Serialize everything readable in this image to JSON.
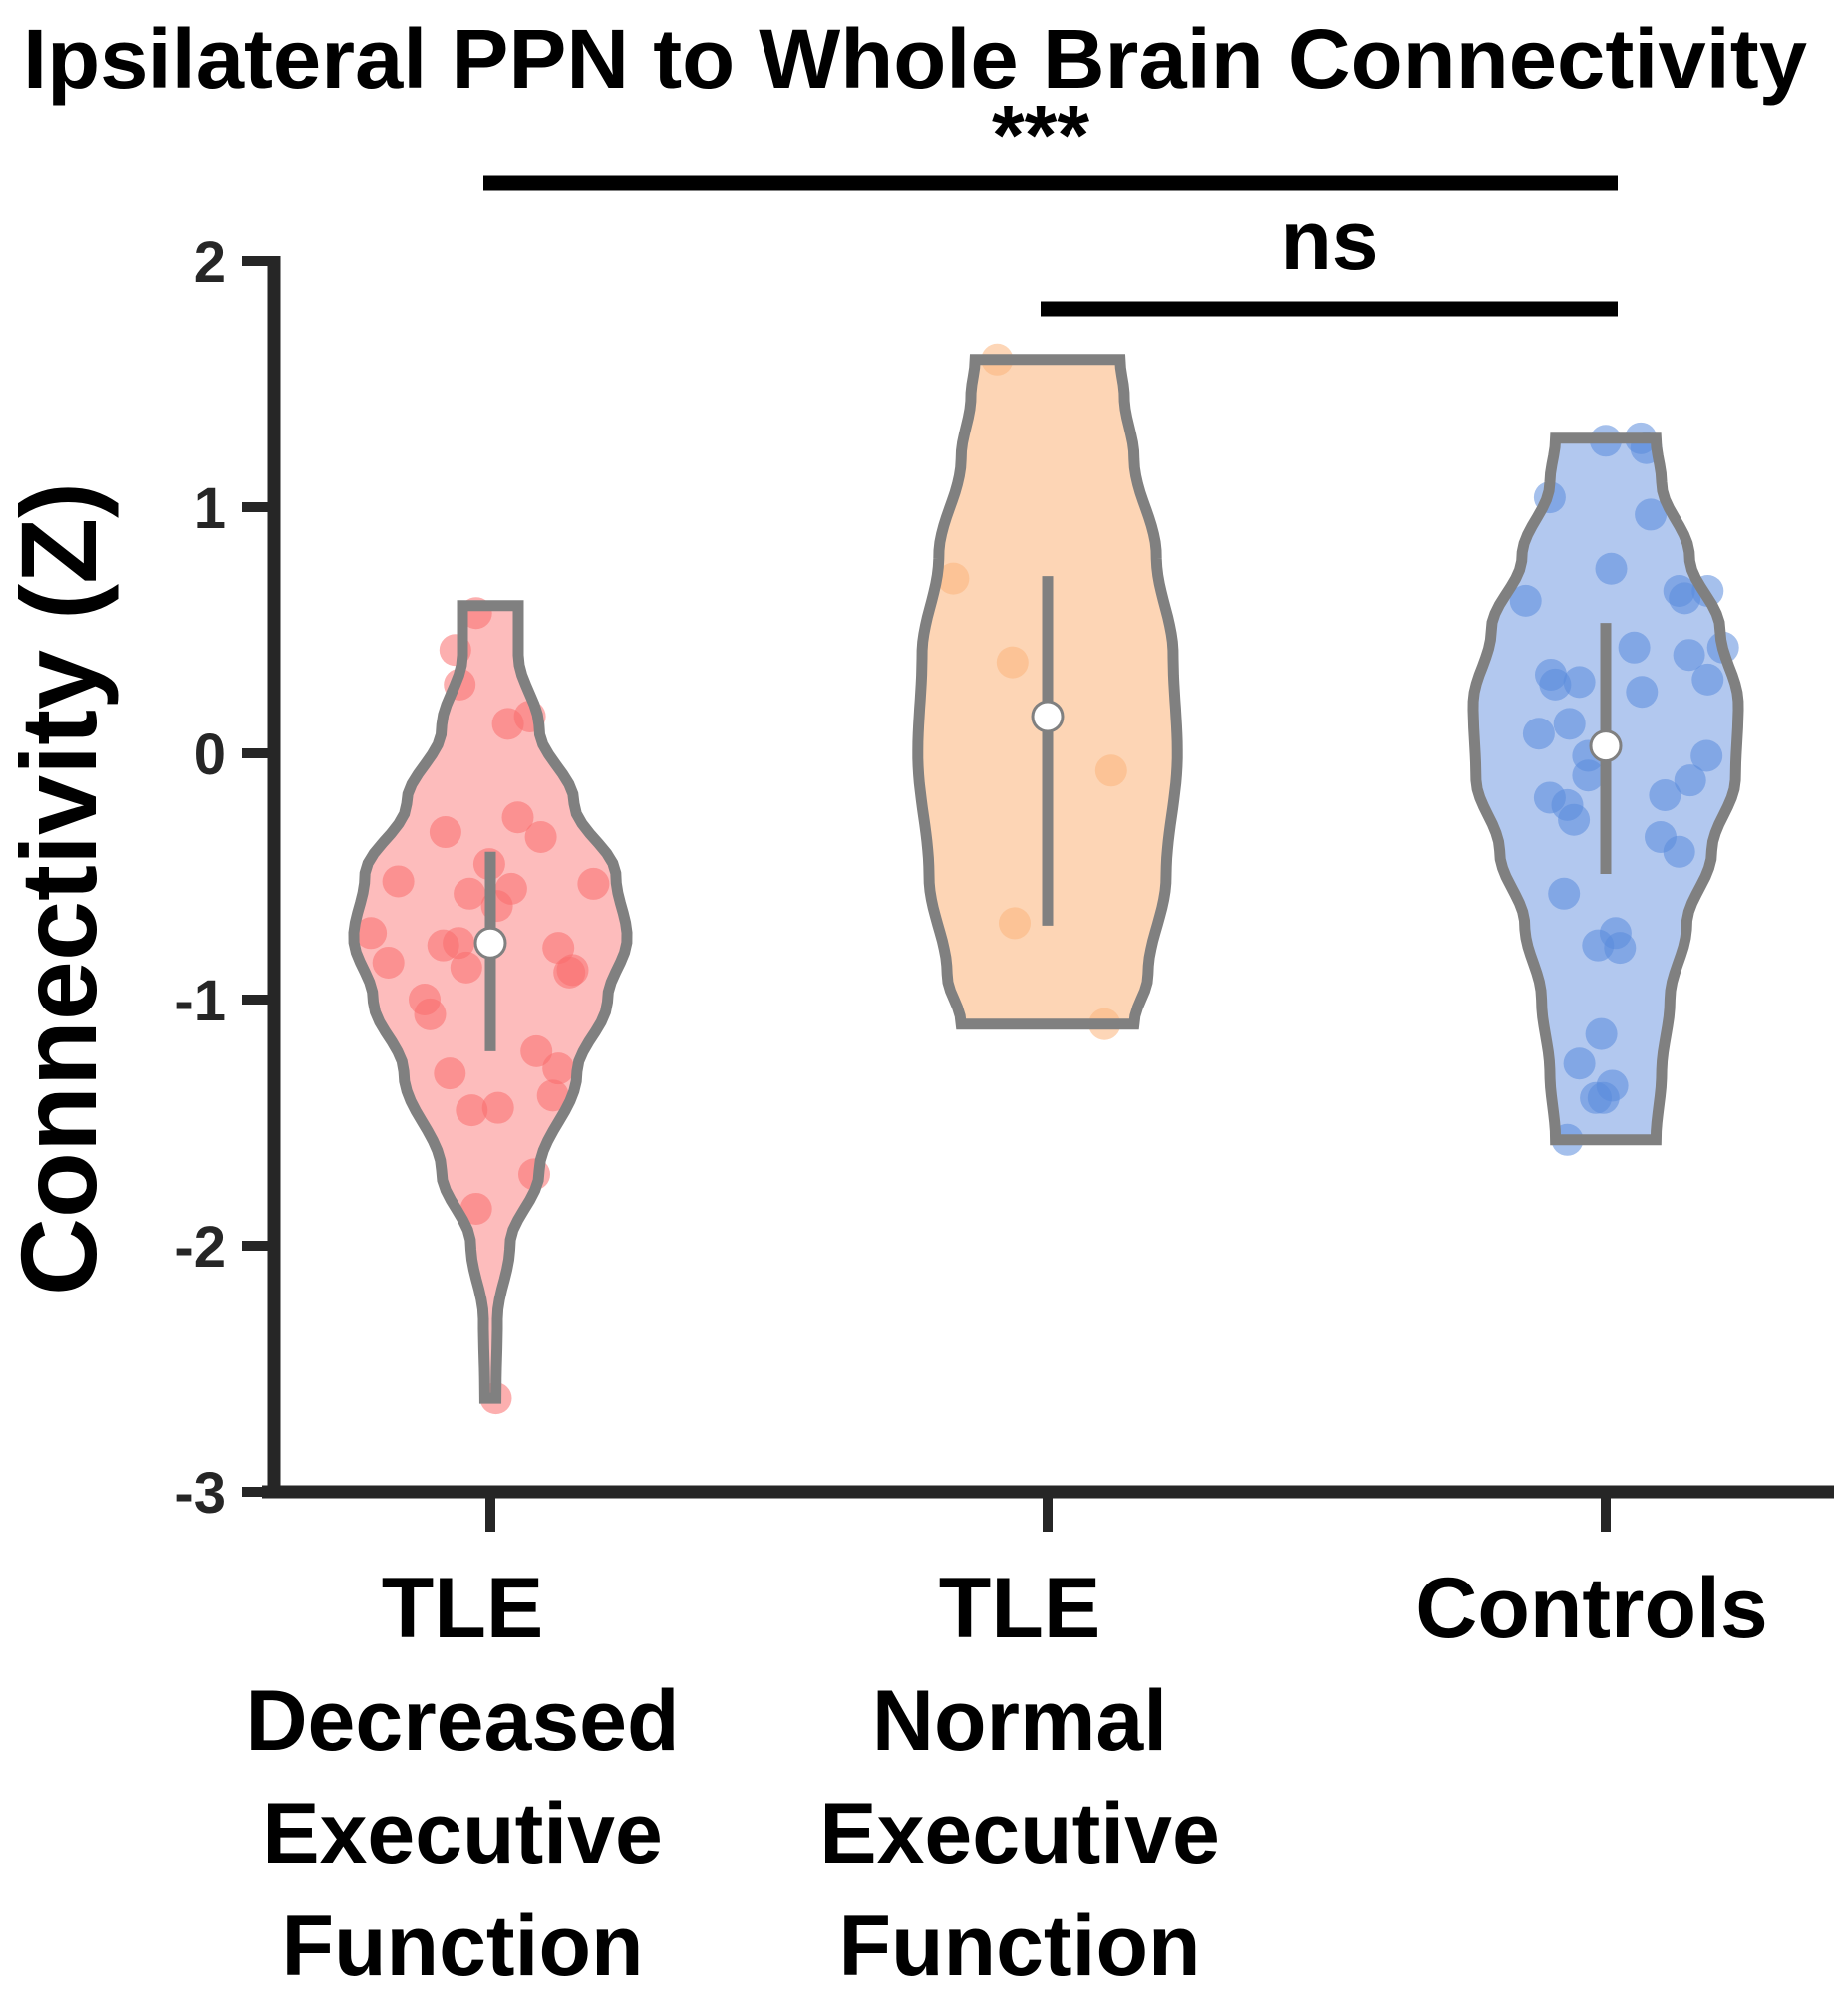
{
  "chart_data": {
    "type": "violin",
    "title": "Ipsilateral PPN to Whole Brain Connectivity",
    "xlabel": "",
    "ylabel": "Connectivity (Z)",
    "ylim": [
      -3,
      2
    ],
    "yticks": [
      2,
      1,
      0,
      -1,
      -2,
      -3
    ],
    "ytick_labels": [
      "2",
      "1",
      "0",
      "-1",
      "-2",
      "-3"
    ],
    "grid": false,
    "categories": [
      [
        "TLE",
        "Decreased",
        "Executive",
        "Function"
      ],
      [
        "TLE",
        "Normal",
        "Executive",
        "Function"
      ],
      [
        "Controls"
      ]
    ],
    "series": [
      {
        "name": "TLE Decreased Executive Function",
        "fill_color": "#fdbcbc",
        "point_color": "#fa6e6e",
        "min": -2.62,
        "max": 0.6,
        "median": -0.77,
        "q1": -1.21,
        "q3": -0.4,
        "density": [
          [
            -2.62,
            0.04
          ],
          [
            -2.3,
            0.05
          ],
          [
            -2.0,
            0.14
          ],
          [
            -1.7,
            0.35
          ],
          [
            -1.3,
            0.62
          ],
          [
            -1.0,
            0.84
          ],
          [
            -0.75,
            0.98
          ],
          [
            -0.5,
            0.9
          ],
          [
            -0.2,
            0.6
          ],
          [
            0.1,
            0.35
          ],
          [
            0.4,
            0.2
          ],
          [
            0.6,
            0.2
          ]
        ],
        "points": [
          0.57,
          0.42,
          0.28,
          0.12,
          0.15,
          -0.32,
          -0.26,
          -0.34,
          -0.52,
          -0.45,
          -0.57,
          -0.55,
          -0.62,
          -0.53,
          -0.73,
          -0.85,
          -0.78,
          -0.77,
          -0.87,
          -0.79,
          -0.88,
          -0.89,
          -1.0,
          -1.06,
          -1.21,
          -1.28,
          -1.39,
          -1.3,
          -1.45,
          -1.44,
          -1.71,
          -1.85,
          -2.62
        ],
        "jitter": [
          -0.13,
          -0.32,
          -0.28,
          0.16,
          0.36,
          -0.41,
          0.25,
          0.46,
          -0.84,
          -0.01,
          -0.19,
          0.19,
          0.06,
          0.94,
          -1.09,
          -0.93,
          -0.43,
          -0.29,
          -0.22,
          0.62,
          0.75,
          0.72,
          -0.6,
          -0.55,
          0.42,
          0.62,
          0.57,
          -0.37,
          -0.17,
          0.07,
          0.4,
          -0.13,
          0.05
        ]
      },
      {
        "name": "TLE Normal Executive Function",
        "fill_color": "#fdd5b5",
        "point_color": "#fcb57c",
        "min": -1.1,
        "max": 1.6,
        "median": 0.15,
        "q1": -0.7,
        "q3": 0.72,
        "density": [
          [
            -1.1,
            0.62
          ],
          [
            -0.9,
            0.72
          ],
          [
            -0.5,
            0.85
          ],
          [
            0.0,
            0.93
          ],
          [
            0.4,
            0.9
          ],
          [
            0.8,
            0.78
          ],
          [
            1.2,
            0.62
          ],
          [
            1.45,
            0.55
          ],
          [
            1.6,
            0.52
          ]
        ],
        "points": [
          1.6,
          0.71,
          0.37,
          -0.07,
          -0.69,
          -1.1
        ],
        "jitter": [
          -0.46,
          -0.86,
          -0.32,
          0.58,
          -0.3,
          0.52
        ]
      },
      {
        "name": "Controls",
        "fill_color": "#b2c8ef",
        "point_color": "#5b8ddc",
        "min": -1.57,
        "max": 1.28,
        "median": 0.03,
        "q1": -0.49,
        "q3": 0.53,
        "density": [
          [
            -1.57,
            0.36
          ],
          [
            -1.3,
            0.4
          ],
          [
            -1.0,
            0.46
          ],
          [
            -0.7,
            0.58
          ],
          [
            -0.4,
            0.76
          ],
          [
            -0.1,
            0.93
          ],
          [
            0.2,
            0.95
          ],
          [
            0.5,
            0.82
          ],
          [
            0.8,
            0.6
          ],
          [
            1.1,
            0.4
          ],
          [
            1.28,
            0.36
          ]
        ],
        "points": [
          1.27,
          1.28,
          1.24,
          1.04,
          0.97,
          0.75,
          0.62,
          0.66,
          0.63,
          0.66,
          0.43,
          0.4,
          0.43,
          0.3,
          0.32,
          0.28,
          0.29,
          0.25,
          0.12,
          0.08,
          -0.01,
          -0.01,
          -0.09,
          -0.11,
          -0.17,
          -0.18,
          -0.21,
          -0.27,
          -0.34,
          -0.4,
          -0.57,
          -0.73,
          -0.78,
          -0.79,
          -1.14,
          -1.26,
          -1.35,
          -1.4,
          -1.4,
          -1.57
        ],
        "jitter": [
          0.0,
          0.32,
          0.37,
          -0.51,
          0.41,
          0.05,
          -0.73,
          0.67,
          0.72,
          0.93,
          0.26,
          0.76,
          1.07,
          0.93,
          -0.5,
          -0.46,
          -0.24,
          0.33,
          -0.33,
          -0.61,
          -0.16,
          0.92,
          -0.16,
          0.77,
          0.54,
          -0.51,
          -0.35,
          -0.29,
          0.5,
          0.67,
          -0.38,
          0.09,
          -0.07,
          0.13,
          -0.04,
          -0.24,
          0.06,
          -0.09,
          -0.02,
          -0.35
        ]
      }
    ],
    "significance": [
      {
        "from": 0,
        "to": 2,
        "label": "***",
        "level": 1
      },
      {
        "from": 1,
        "to": 2,
        "label": "ns",
        "level": 0
      }
    ],
    "annotations": [
      "***",
      "ns"
    ]
  }
}
